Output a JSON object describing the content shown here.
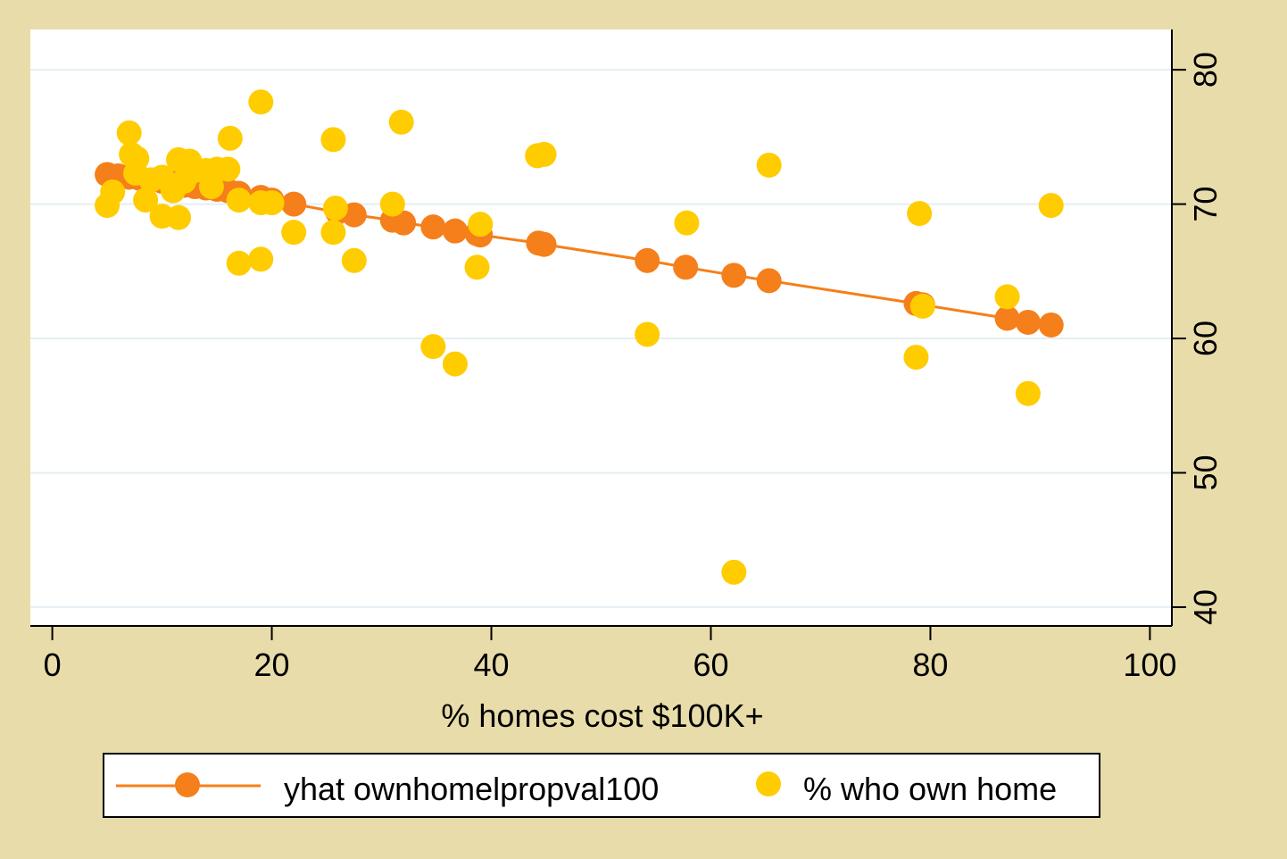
{
  "chart_data": {
    "type": "scatter",
    "title": "",
    "xlabel": "% homes cost $100K+",
    "ylabel": "",
    "xlim": [
      -2,
      102
    ],
    "ylim": [
      38.6,
      83
    ],
    "xticks": [
      0,
      20,
      40,
      60,
      80,
      100
    ],
    "yticks": [
      40,
      50,
      60,
      70,
      80
    ],
    "y_axis_side": "right",
    "grid": "horizontal",
    "legend_position": "bottom",
    "colors": {
      "background": "#e8dcaa",
      "plot_bg": "#ffffff",
      "fitted": "#f57f1a",
      "observed": "#ffcc00",
      "grid": "#e4eef2"
    },
    "series": [
      {
        "name": "yhat ownhomelpropval100",
        "style": "line-marker",
        "color": "#f57f1a",
        "x": [
          5,
          6,
          7,
          8,
          9,
          10,
          11,
          12,
          13,
          14,
          15,
          16,
          17,
          19,
          20,
          22,
          26,
          27.5,
          31,
          32,
          34.7,
          36.7,
          38.7,
          39,
          44.3,
          44.8,
          54.2,
          57.7,
          62.1,
          65.3,
          78.7,
          79.3,
          87,
          88.9,
          91
        ],
        "y": [
          72.2,
          72.1,
          72.0,
          71.9,
          71.8,
          71.7,
          71.6,
          71.4,
          71.3,
          71.2,
          71.1,
          71.0,
          70.8,
          70.5,
          70.3,
          70.0,
          69.4,
          69.2,
          68.8,
          68.6,
          68.3,
          68.0,
          67.8,
          67.7,
          67.1,
          67.0,
          65.8,
          65.3,
          64.7,
          64.3,
          62.6,
          62.5,
          61.5,
          61.2,
          61.0
        ]
      },
      {
        "name": "% who own home",
        "style": "marker",
        "color": "#ffcc00",
        "x": [
          5,
          5.5,
          7,
          7.2,
          7.6,
          7.7,
          8.5,
          9,
          10,
          10,
          11,
          11.5,
          11.5,
          12,
          12.5,
          13,
          14,
          14.5,
          15,
          16,
          16.2,
          17,
          17,
          19,
          19,
          19,
          20,
          22,
          25.6,
          25.6,
          25.8,
          27.5,
          31,
          31.8,
          34.7,
          36.7,
          38.7,
          39,
          44.2,
          44.8,
          54.2,
          57.8,
          62.1,
          65.3,
          78.7,
          79,
          79.3,
          87,
          88.9,
          91
        ],
        "y": [
          69.9,
          70.9,
          75.3,
          73.7,
          72.3,
          73.4,
          70.3,
          71.8,
          72.0,
          69.1,
          71.0,
          73.3,
          69.0,
          71.7,
          73.2,
          72.5,
          72.5,
          71.3,
          72.6,
          72.6,
          74.9,
          65.6,
          70.3,
          77.6,
          70.1,
          65.9,
          70.1,
          67.9,
          74.8,
          67.9,
          69.7,
          65.8,
          70.0,
          76.1,
          59.4,
          58.1,
          65.3,
          68.5,
          73.6,
          73.7,
          60.3,
          68.6,
          42.6,
          72.9,
          58.6,
          69.3,
          62.4,
          63.1,
          55.9,
          69.9
        ]
      }
    ]
  }
}
